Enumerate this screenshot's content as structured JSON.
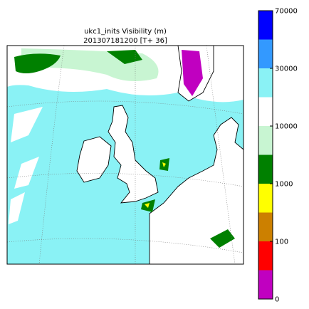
{
  "title": "ukc1_inits Visibility (m)",
  "subtitle": "201307181200 [T+ 36]",
  "colorbar": {
    "colors": [
      "#c000c0",
      "#ff0000",
      "#cc8000",
      "#ffff00",
      "#008000",
      "#c8f5d2",
      "#ffffff",
      "#8af2f5",
      "#3399ff",
      "#0000ff"
    ],
    "ticks": [
      0,
      100,
      1000,
      10000,
      30000,
      70000
    ]
  }
}
